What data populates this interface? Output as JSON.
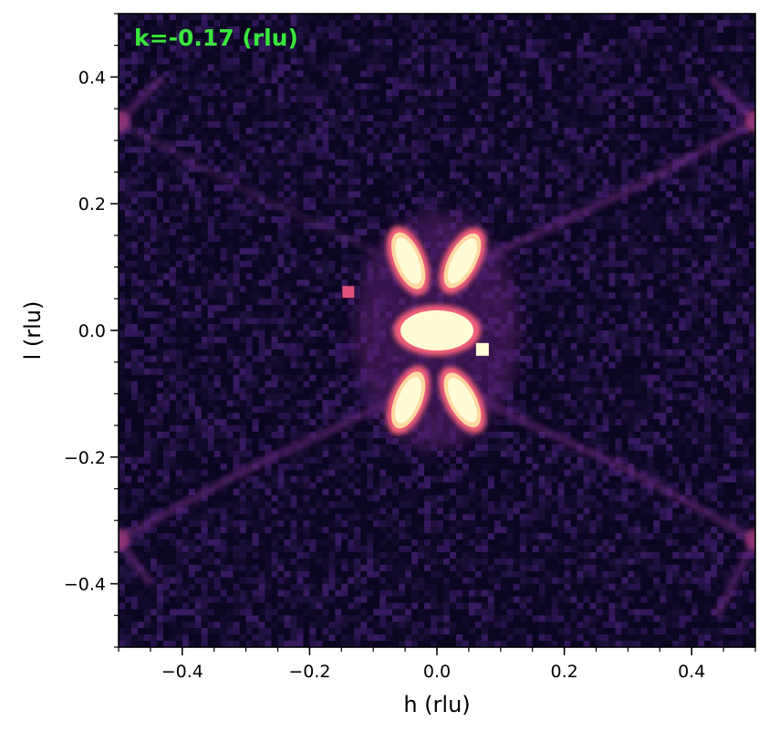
{
  "chart_data": {
    "type": "heatmap",
    "annotation": "k=-0.17 (rlu)",
    "annotation_color": "#39e83b",
    "xlabel": "h (rlu)",
    "ylabel": "l (rlu)",
    "xlim": [
      -0.5,
      0.5
    ],
    "ylim": [
      -0.5,
      0.5
    ],
    "x_ticks": [
      {
        "value": -0.4,
        "label": "−0.4"
      },
      {
        "value": -0.2,
        "label": "−0.2"
      },
      {
        "value": 0.0,
        "label": "0.0"
      },
      {
        "value": 0.2,
        "label": "0.2"
      },
      {
        "value": 0.4,
        "label": "0.4"
      }
    ],
    "y_ticks": [
      {
        "value": 0.4,
        "label": "0.4"
      },
      {
        "value": 0.2,
        "label": "0.2"
      },
      {
        "value": 0.0,
        "label": "0.0"
      },
      {
        "value": -0.2,
        "label": "−0.2"
      },
      {
        "value": -0.4,
        "label": "−0.4"
      }
    ],
    "minor_tick_step": 0.05,
    "grid": false,
    "colormap": "magma",
    "features": [
      {
        "name": "lobe-upper-left",
        "h": -0.045,
        "l": 0.11
      },
      {
        "name": "lobe-upper-right",
        "h": 0.04,
        "l": 0.11
      },
      {
        "name": "lobe-lower-left",
        "h": -0.045,
        "l": -0.11
      },
      {
        "name": "lobe-lower-right",
        "h": 0.04,
        "l": -0.11
      },
      {
        "name": "central-spot",
        "h": 0.0,
        "l": 0.0
      },
      {
        "name": "pixel-spot-1",
        "h": -0.14,
        "l": 0.06
      },
      {
        "name": "pixel-spot-2",
        "h": 0.07,
        "l": -0.03
      }
    ]
  }
}
